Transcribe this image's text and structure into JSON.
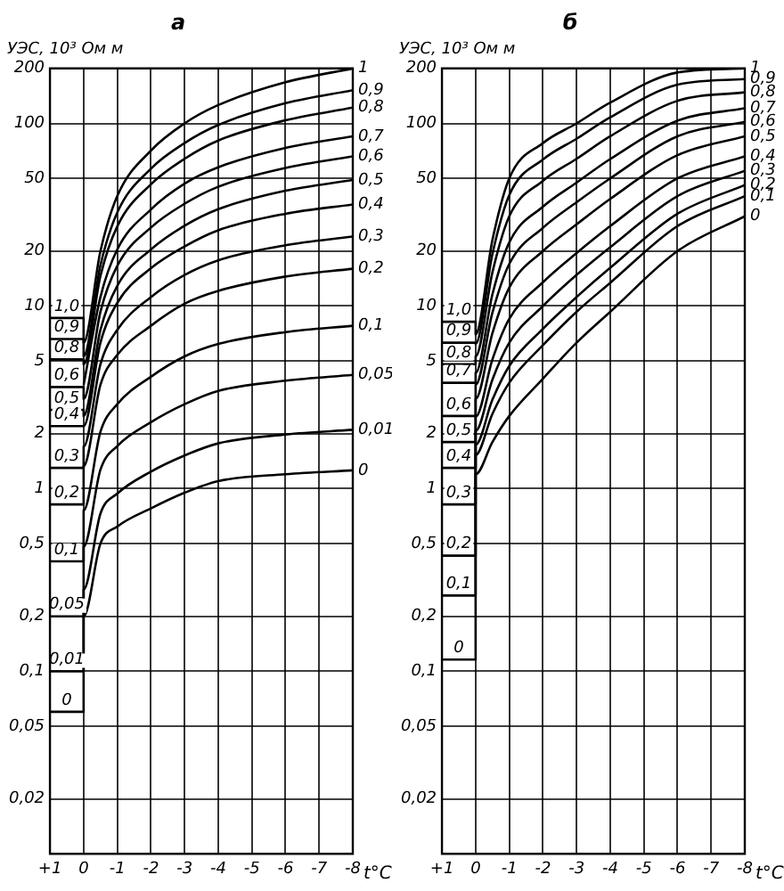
{
  "chart_data": [
    {
      "type": "line",
      "title": "а",
      "ylabel": "УЭС, 10³ Ом м",
      "xlabel": "t°C",
      "log": "y",
      "grid": true,
      "xlim": [
        1,
        -8
      ],
      "xticks": [
        {
          "value": 1,
          "label": "+1"
        },
        0,
        -1,
        -2,
        -3,
        -4,
        -5,
        -6,
        -7,
        -8
      ],
      "ylim": [
        0.01,
        200
      ],
      "yticks": [
        {
          "value": 0.02,
          "label": "0,02"
        },
        {
          "value": 0.05,
          "label": "0,05"
        },
        {
          "value": 0.1,
          "label": "0,1"
        },
        {
          "value": 0.2,
          "label": "0,2"
        },
        {
          "value": 0.5,
          "label": "0,5"
        },
        1,
        2,
        5,
        10,
        20,
        50,
        100,
        200
      ],
      "series": [
        {
          "name": "1",
          "color": "#000000",
          "x": [
            1,
            0,
            0,
            -0.5,
            -1,
            -2,
            -3,
            -4,
            -6,
            -8
          ],
          "values": [
            8.6,
            8.6,
            6.3,
            20,
            40,
            71,
            100,
            126,
            168,
            200
          ]
        },
        {
          "name": "0,9",
          "color": "#000000",
          "x": [
            1,
            0,
            0,
            -0.5,
            -1,
            -2,
            -3,
            -4,
            -6,
            -8
          ],
          "values": [
            6.6,
            6.6,
            5.3,
            16.7,
            32.5,
            56.5,
            78,
            98,
            129,
            152
          ]
        },
        {
          "name": "0,8",
          "color": "#000000",
          "x": [
            1,
            0,
            0,
            -0.5,
            -1,
            -2,
            -3,
            -4,
            -6,
            -8
          ],
          "values": [
            5.1,
            5.1,
            4.8,
            14.6,
            27.3,
            46.4,
            64,
            80.6,
            104,
            122
          ]
        },
        {
          "name": "0,7",
          "color": "#000000",
          "x": [
            0,
            -0.5,
            -1,
            -2,
            -3,
            -4,
            -6,
            -8
          ],
          "values": [
            3.7,
            11.2,
            20.4,
            33.8,
            46.8,
            57.5,
            73.4,
            85
          ]
        },
        {
          "name": "0,6",
          "color": "#000000",
          "x": [
            1,
            0,
            0,
            -0.5,
            -1,
            -2,
            -3,
            -4,
            -6,
            -8
          ],
          "values": [
            3.6,
            3.6,
            3.1,
            9.3,
            16.6,
            26.9,
            36.3,
            45,
            57,
            66
          ]
        },
        {
          "name": "0,5",
          "color": "#000000",
          "x": [
            1,
            0,
            0,
            -0.5,
            -1,
            -2,
            -3,
            -4,
            -6,
            -8
          ],
          "values": [
            2.7,
            2.7,
            2.5,
            7.4,
            12.9,
            20.4,
            27.5,
            33.9,
            42.8,
            49
          ]
        },
        {
          "name": "0,4",
          "color": "#000000",
          "x": [
            1,
            0,
            0,
            -0.5,
            -1,
            -2,
            -3,
            -4,
            -6,
            -8
          ],
          "values": [
            2.2,
            2.2,
            2.2,
            6.3,
            10.4,
            16.1,
            21.2,
            26,
            32,
            36
          ]
        },
        {
          "name": "0,3",
          "color": "#000000",
          "x": [
            1,
            0,
            0,
            -0.5,
            -1,
            -2,
            -3,
            -4,
            -6,
            -8
          ],
          "values": [
            1.3,
            1.3,
            1.7,
            4.8,
            7.4,
            11.2,
            14.8,
            17.8,
            21.5,
            24
          ]
        },
        {
          "name": "0,2",
          "color": "#000000",
          "x": [
            1,
            0,
            0,
            -0.5,
            -1,
            -2,
            -3,
            -4,
            -6,
            -8
          ],
          "values": [
            0.82,
            0.82,
            1.33,
            3.7,
            5.4,
            7.8,
            10.3,
            12.1,
            14.5,
            16
          ]
        },
        {
          "name": "0,1",
          "color": "#000000",
          "x": [
            1,
            0,
            0,
            -0.5,
            -1,
            -2,
            -3,
            -4,
            -6,
            -8
          ],
          "values": [
            0.4,
            0.4,
            0.76,
            2.05,
            2.9,
            4.1,
            5.3,
            6.2,
            7.2,
            7.8
          ]
        },
        {
          "name": "0,05",
          "color": "#000000",
          "x": [
            1,
            0,
            0,
            -0.5,
            -1,
            -2,
            -3,
            -4,
            -6,
            -8
          ],
          "values": [
            0.2,
            0.2,
            0.48,
            1.27,
            1.71,
            2.31,
            2.9,
            3.43,
            3.9,
            4.2
          ]
        },
        {
          "name": "0,01",
          "color": "#000000",
          "x": [
            1,
            0,
            0,
            -0.5,
            -1,
            -2,
            -3,
            -4,
            -6,
            -8
          ],
          "values": [
            0.1,
            0.1,
            0.28,
            0.73,
            0.94,
            1.24,
            1.52,
            1.77,
            1.98,
            2.1
          ]
        },
        {
          "name": "0",
          "color": "#000000",
          "x": [
            1,
            0,
            0,
            -0.5,
            -1,
            -2,
            -3,
            -4,
            -6,
            -8
          ],
          "values": [
            0.06,
            0.06,
            0.2,
            0.5,
            0.62,
            0.78,
            0.95,
            1.1,
            1.2,
            1.26
          ]
        }
      ],
      "annotations": [
        "1,0",
        "0,9",
        "0,8",
        "0,6",
        "0,5",
        "0,4",
        "0,3",
        "0,2",
        "0,1",
        "0,05",
        "0,01",
        "0"
      ]
    },
    {
      "type": "line",
      "title": "б",
      "ylabel": "УЭС, 10³ Ом м",
      "xlabel": "t°C",
      "log": "y",
      "grid": true,
      "xlim": [
        1,
        -8
      ],
      "xticks": [
        {
          "value": 1,
          "label": "+1"
        },
        0,
        -1,
        -2,
        -3,
        -4,
        -5,
        -6,
        -7,
        -8
      ],
      "ylim": [
        0.01,
        200
      ],
      "yticks": [
        {
          "value": 0.02,
          "label": "0,02"
        },
        {
          "value": 0.05,
          "label": "0,05"
        },
        {
          "value": 0.1,
          "label": "0,1"
        },
        {
          "value": 0.2,
          "label": "0,2"
        },
        {
          "value": 0.5,
          "label": "0,5"
        },
        1,
        2,
        5,
        10,
        20,
        50,
        100,
        200
      ],
      "series": [
        {
          "name": "1",
          "color": "#000000",
          "x": [
            1,
            0,
            0,
            -0.5,
            -1,
            -2,
            -3,
            -4,
            -6,
            -8
          ],
          "values": [
            8.2,
            8.2,
            7,
            23,
            50,
            78,
            100,
            130,
            190,
            200
          ]
        },
        {
          "name": "0,9",
          "color": "#000000",
          "x": [
            1,
            0,
            0,
            -0.5,
            -1,
            -2,
            -3,
            -4,
            -6,
            -8
          ],
          "values": [
            6.3,
            6.3,
            6.2,
            19.3,
            40.5,
            63.4,
            82.4,
            108,
            163,
            175
          ]
        },
        {
          "name": "0,8",
          "color": "#000000",
          "x": [
            1,
            0,
            0,
            -0.5,
            -1,
            -2,
            -3,
            -4,
            -6,
            -8
          ],
          "values": [
            4.8,
            4.8,
            5.3,
            15.3,
            31,
            48.5,
            64,
            85,
            133,
            148
          ]
        },
        {
          "name": "0,7",
          "color": "#000000",
          "x": [
            1,
            0,
            0,
            -0.5,
            -1,
            -2,
            -3,
            -4,
            -6,
            -8
          ],
          "values": [
            3.8,
            3.8,
            4.3,
            11.6,
            22.3,
            35,
            47.4,
            63.8,
            103.5,
            121
          ]
        },
        {
          "name": "0,6",
          "color": "#000000",
          "x": [
            1,
            0,
            0,
            -0.5,
            -1,
            -2,
            -3,
            -4,
            -6,
            -8
          ],
          "values": [
            2.5,
            2.5,
            3.7,
            9.2,
            17,
            26.8,
            37,
            50,
            85,
            102
          ]
        },
        {
          "name": "0,5",
          "color": "#000000",
          "x": [
            1,
            0,
            0,
            -0.5,
            -1,
            -2,
            -3,
            -4,
            -6,
            -8
          ],
          "values": [
            1.8,
            1.8,
            3.1,
            7.1,
            12.6,
            20,
            28,
            38.6,
            67,
            85
          ]
        },
        {
          "name": "0,4",
          "color": "#000000",
          "x": [
            1,
            0,
            0,
            -0.5,
            -1,
            -2,
            -3,
            -4,
            -6,
            -8
          ],
          "values": [
            1.3,
            1.3,
            2.47,
            5.1,
            8.5,
            13.5,
            19.5,
            27.4,
            50,
            66
          ]
        },
        {
          "name": "0,3",
          "color": "#000000",
          "x": [
            1,
            0,
            0,
            -0.5,
            -1,
            -2,
            -3,
            -4,
            -6,
            -8
          ],
          "values": [
            0.82,
            0.82,
            2.07,
            3.96,
            6.3,
            10,
            14.8,
            21,
            40,
            55
          ]
        },
        {
          "name": "0,2",
          "color": "#000000",
          "x": [
            1,
            0,
            0,
            -0.5,
            -1,
            -2,
            -3,
            -4,
            -6,
            -8
          ],
          "values": [
            0.43,
            0.43,
            1.74,
            3.07,
            4.7,
            7.5,
            11.2,
            16.2,
            32,
            46
          ]
        },
        {
          "name": "0,1",
          "color": "#000000",
          "x": [
            1,
            0,
            0,
            -0.5,
            -1,
            -2,
            -3,
            -4,
            -6,
            -8
          ],
          "values": [
            0.26,
            0.26,
            1.53,
            2.57,
            3.8,
            6.1,
            9.3,
            13.4,
            27.4,
            40
          ]
        },
        {
          "name": "0",
          "color": "#000000",
          "x": [
            1,
            0,
            0,
            -0.5,
            -1,
            -2,
            -3,
            -4,
            -6,
            -8
          ],
          "values": [
            0.116,
            0.116,
            1.2,
            1.8,
            2.5,
            4,
            6.3,
            9.3,
            20,
            31
          ]
        }
      ],
      "annotations": [
        "1,0",
        "0,9",
        "0,8",
        "0,7",
        "0,6",
        "0,5",
        "0,4",
        "0,3",
        "0,2",
        "0,1",
        "0"
      ]
    }
  ]
}
